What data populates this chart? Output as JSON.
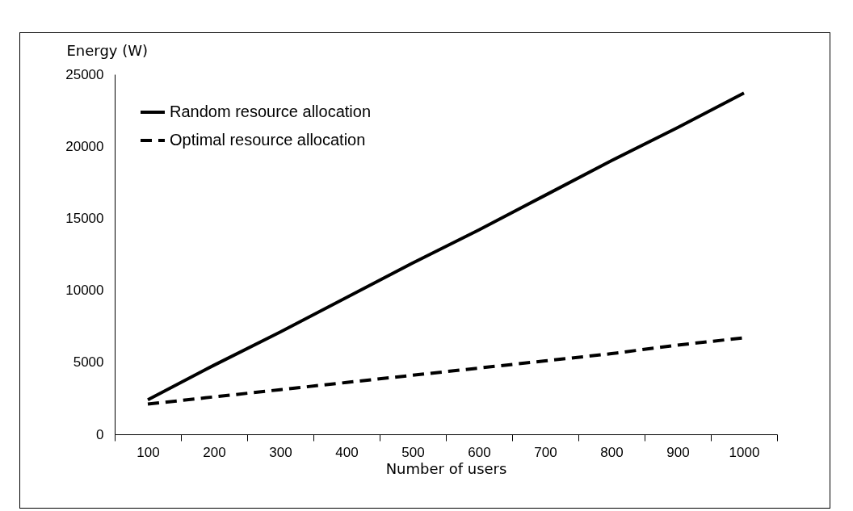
{
  "chart_data": {
    "type": "line",
    "xlabel": "Number of users",
    "ylabel": "Energy (W)",
    "categories": [
      "100",
      "200",
      "300",
      "400",
      "500",
      "600",
      "700",
      "800",
      "900",
      "1000"
    ],
    "ylim": [
      0,
      25000
    ],
    "yticks": [
      0,
      5000,
      10000,
      15000,
      20000,
      25000
    ],
    "grid": false,
    "legend": "top left",
    "marker": "none",
    "series": [
      {
        "name": "Random resource allocation",
        "color": "#000000",
        "line_style": "solid",
        "values": [
          2400,
          4800,
          7100,
          9500,
          11900,
          14200,
          16600,
          19000,
          21300,
          23700
        ]
      },
      {
        "name": "Optimal resource allocation",
        "color": "#000000",
        "line_style": "dashed",
        "values": [
          2100,
          2600,
          3100,
          3600,
          4100,
          4600,
          5100,
          5600,
          6200,
          6700
        ]
      }
    ]
  }
}
